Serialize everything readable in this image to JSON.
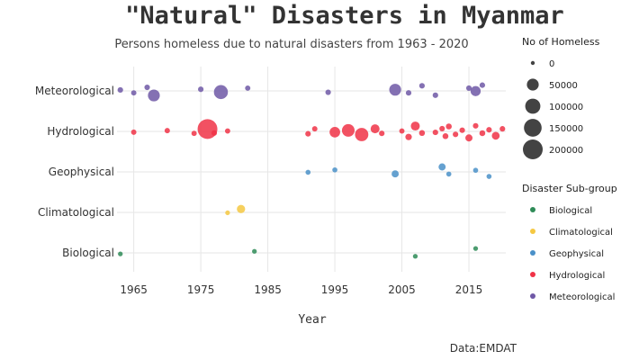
{
  "chart_data": {
    "type": "scatter",
    "title": "\"Natural\" Disasters in Myanmar",
    "subtitle": "Persons homeless due to natural disasters from 1963 - 2020",
    "xlabel": "Year",
    "ylabel": "",
    "caption": "Data:EMDAT",
    "x_ticks": [
      1965,
      1975,
      1985,
      1995,
      2005,
      2015
    ],
    "xlim": [
      1962.5,
      2020.5
    ],
    "categories": [
      "Biological",
      "Climatological",
      "Geophysical",
      "Hydrological",
      "Meteorological"
    ],
    "grid": true,
    "legend_position": "right",
    "size_legend": {
      "title": "No of Homeless",
      "values": [
        0,
        50000,
        100000,
        150000,
        200000
      ],
      "labels": [
        "0",
        "50000",
        "100000",
        "150000",
        "200000"
      ]
    },
    "color_legend": {
      "title": "Disaster Sub-group",
      "labels": [
        "Biological",
        "Climatological",
        "Geophysical",
        "Hydrological",
        "Meteorological"
      ]
    },
    "colors": {
      "Biological": "#2e8b57",
      "Climatological": "#f5c842",
      "Geophysical": "#4a90c8",
      "Hydrological": "#f03246",
      "Meteorological": "#6f58a6"
    },
    "series": [
      {
        "name": "Biological",
        "points": [
          {
            "year": 1963,
            "homeless": 500,
            "offset": 0.05
          },
          {
            "year": 1983,
            "homeless": 500,
            "offset": -0.08
          },
          {
            "year": 2007,
            "homeless": 500,
            "offset": 0.17
          },
          {
            "year": 2016,
            "homeless": 500,
            "offset": -0.22
          }
        ]
      },
      {
        "name": "Climatological",
        "points": [
          {
            "year": 1979,
            "homeless": 500,
            "offset": 0.02
          },
          {
            "year": 1981,
            "homeless": 15000,
            "offset": -0.17
          }
        ]
      },
      {
        "name": "Geophysical",
        "points": [
          {
            "year": 1991,
            "homeless": 1000,
            "offset": 0.02
          },
          {
            "year": 1995,
            "homeless": 1000,
            "offset": -0.1
          },
          {
            "year": 2004,
            "homeless": 8000,
            "offset": 0.1
          },
          {
            "year": 2011,
            "homeless": 8000,
            "offset": -0.25
          },
          {
            "year": 2012,
            "homeless": 1000,
            "offset": 0.11
          },
          {
            "year": 2016,
            "homeless": 1000,
            "offset": -0.08
          },
          {
            "year": 2018,
            "homeless": 1000,
            "offset": 0.23
          }
        ]
      },
      {
        "name": "Hydrological",
        "points": [
          {
            "year": 1965,
            "homeless": 1500,
            "offset": 0.04
          },
          {
            "year": 1970,
            "homeless": 1500,
            "offset": -0.04
          },
          {
            "year": 1974,
            "homeless": 1500,
            "offset": 0.1
          },
          {
            "year": 1976,
            "homeless": 200000,
            "offset": -0.12
          },
          {
            "year": 1977,
            "homeless": 2000,
            "offset": 0.08
          },
          {
            "year": 1979,
            "homeless": 1500,
            "offset": -0.02
          },
          {
            "year": 1991,
            "homeless": 2000,
            "offset": 0.12
          },
          {
            "year": 1992,
            "homeless": 1500,
            "offset": -0.13
          },
          {
            "year": 1995,
            "homeless": 35000,
            "offset": 0.04
          },
          {
            "year": 1997,
            "homeless": 60000,
            "offset": -0.05
          },
          {
            "year": 1999,
            "homeless": 70000,
            "offset": 0.16
          },
          {
            "year": 2001,
            "homeless": 20000,
            "offset": -0.13
          },
          {
            "year": 2002,
            "homeless": 2000,
            "offset": 0.1
          },
          {
            "year": 2005,
            "homeless": 1500,
            "offset": -0.02
          },
          {
            "year": 2006,
            "homeless": 5000,
            "offset": 0.28
          },
          {
            "year": 2007,
            "homeless": 20000,
            "offset": -0.27
          },
          {
            "year": 2008,
            "homeless": 3000,
            "offset": 0.08
          },
          {
            "year": 2010,
            "homeless": 2000,
            "offset": 0.05
          },
          {
            "year": 2011,
            "homeless": 2000,
            "offset": -0.14
          },
          {
            "year": 2011.5,
            "homeless": 3000,
            "offset": 0.24
          },
          {
            "year": 2012,
            "homeless": 3000,
            "offset": -0.25
          },
          {
            "year": 2013,
            "homeless": 2000,
            "offset": 0.15
          },
          {
            "year": 2014,
            "homeless": 2000,
            "offset": -0.06
          },
          {
            "year": 2015,
            "homeless": 8000,
            "offset": 0.33
          },
          {
            "year": 2016,
            "homeless": 2000,
            "offset": -0.28
          },
          {
            "year": 2017,
            "homeless": 3000,
            "offset": 0.09
          },
          {
            "year": 2018,
            "homeless": 2000,
            "offset": -0.08
          },
          {
            "year": 2019,
            "homeless": 12000,
            "offset": 0.22
          },
          {
            "year": 2020,
            "homeless": 2000,
            "offset": -0.13
          }
        ]
      },
      {
        "name": "Meteorological",
        "points": [
          {
            "year": 1963,
            "homeless": 2000,
            "offset": -0.05
          },
          {
            "year": 1965,
            "homeless": 1500,
            "offset": 0.1
          },
          {
            "year": 1967,
            "homeless": 2000,
            "offset": -0.18
          },
          {
            "year": 1968,
            "homeless": 50000,
            "offset": 0.23
          },
          {
            "year": 1975,
            "homeless": 2000,
            "offset": -0.08
          },
          {
            "year": 1978,
            "homeless": 80000,
            "offset": 0.06
          },
          {
            "year": 1982,
            "homeless": 1500,
            "offset": -0.14
          },
          {
            "year": 1994,
            "homeless": 2000,
            "offset": 0.07
          },
          {
            "year": 2004,
            "homeless": 50000,
            "offset": -0.06
          },
          {
            "year": 2006,
            "homeless": 2000,
            "offset": 0.1
          },
          {
            "year": 2008,
            "homeless": 2000,
            "offset": -0.26
          },
          {
            "year": 2010,
            "homeless": 2000,
            "offset": 0.22
          },
          {
            "year": 2015,
            "homeless": 2000,
            "offset": -0.14
          },
          {
            "year": 2016,
            "homeless": 30000,
            "offset": 0.01
          },
          {
            "year": 2017,
            "homeless": 2000,
            "offset": -0.29
          }
        ]
      }
    ]
  }
}
